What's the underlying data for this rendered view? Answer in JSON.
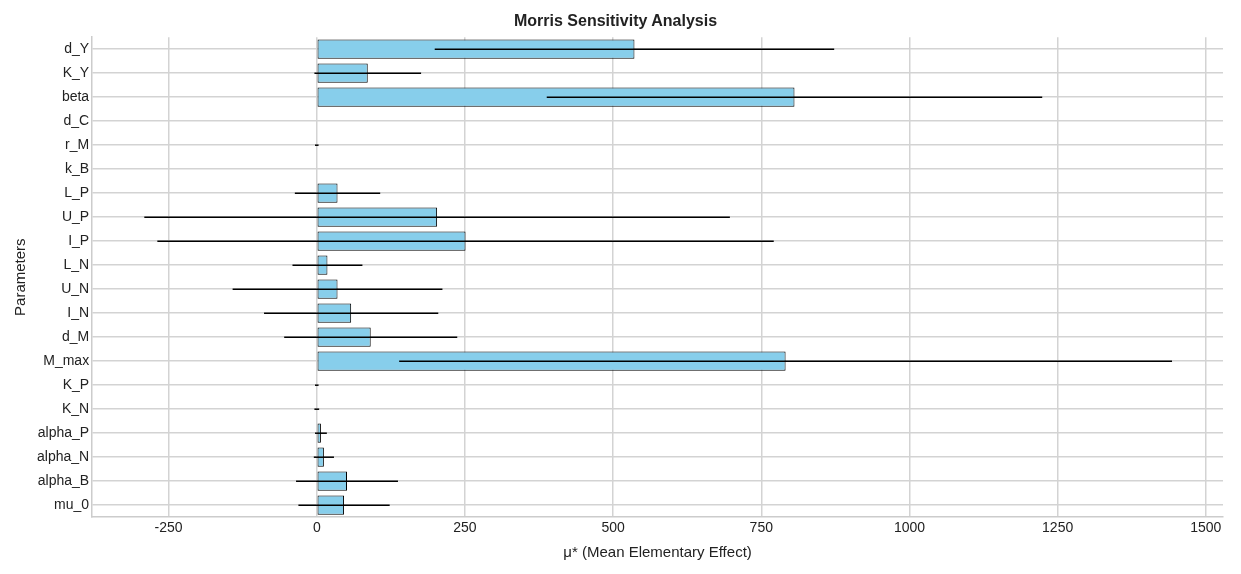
{
  "chart_data": {
    "type": "bar",
    "orientation": "horizontal",
    "title": "Morris Sensitivity Analysis",
    "xlabel": "μ* (Mean Elementary Effect)",
    "ylabel": "Parameters",
    "categories": [
      "d_Y",
      "K_Y",
      "beta",
      "d_C",
      "r_M",
      "k_B",
      "L_P",
      "U_P",
      "I_P",
      "L_N",
      "U_N",
      "I_N",
      "d_M",
      "M_max",
      "K_P",
      "K_N",
      "alpha_P",
      "alpha_N",
      "alpha_B",
      "mu_0"
    ],
    "series": [
      {
        "color": "#87ceeb",
        "values": [
          536,
          86,
          806,
          0,
          0,
          0,
          35,
          203,
          251,
          18,
          35,
          58,
          91,
          791,
          0,
          0,
          7,
          12,
          51,
          46
        ],
        "errors": [
          337,
          90,
          418,
          null,
          3,
          null,
          72,
          494,
          520,
          59,
          177,
          147,
          146,
          652,
          3,
          4,
          10,
          17,
          86,
          77
        ]
      }
    ],
    "xlim": [
      -379,
      1529
    ],
    "xticks": [
      -250,
      0,
      250,
      500,
      750,
      1000,
      1250,
      1500
    ],
    "grid": true,
    "legend": false
  }
}
